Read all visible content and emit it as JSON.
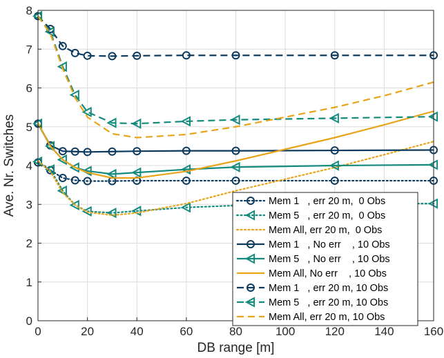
{
  "chart_data": {
    "type": "line",
    "xlabel": "DB range [m]",
    "ylabel": "Ave. Nr. Switches",
    "xlim": [
      0,
      160
    ],
    "ylim": [
      0,
      8
    ],
    "xticks": [
      0,
      20,
      40,
      60,
      80,
      100,
      120,
      140,
      160
    ],
    "yticks": [
      0,
      1,
      2,
      3,
      4,
      5,
      6,
      7,
      8
    ],
    "grid": true,
    "legend_position": "lower-right",
    "colors": {
      "navy": "#0b3a5e",
      "teal": "#138a7e",
      "gold": "#e8a317"
    },
    "series": [
      {
        "name": "Mem 1   , err 20 m,  0 Obs",
        "color": "navy",
        "line": "dotted",
        "marker": "circle",
        "x": [
          0,
          5,
          10,
          15,
          20,
          30,
          40,
          60,
          80,
          120,
          160
        ],
        "y": [
          4.08,
          3.88,
          3.68,
          3.62,
          3.6,
          3.6,
          3.61,
          3.61,
          3.61,
          3.61,
          3.61
        ],
        "markers_x": [
          0,
          5,
          10,
          15,
          20,
          30,
          40,
          60,
          80,
          120,
          160
        ]
      },
      {
        "name": "Mem 5   , err 20 m,  0 Obs",
        "color": "teal",
        "line": "dotted",
        "marker": "triangle-left",
        "x": [
          0,
          5,
          10,
          15,
          20,
          30,
          40,
          60,
          80,
          120,
          160
        ],
        "y": [
          4.1,
          3.9,
          3.35,
          2.98,
          2.82,
          2.78,
          2.83,
          2.92,
          2.97,
          3.02,
          3.02
        ],
        "markers_x": [
          0,
          5,
          10,
          15,
          20,
          30,
          40,
          60,
          80,
          120,
          160
        ]
      },
      {
        "name": "Mem All, err 20 m,  0 Obs",
        "color": "gold",
        "line": "dotted",
        "marker": "none",
        "x": [
          0,
          5,
          10,
          15,
          20,
          30,
          40,
          60,
          80,
          100,
          120,
          140,
          160
        ],
        "y": [
          4.12,
          3.85,
          3.3,
          2.98,
          2.8,
          2.72,
          2.78,
          3.02,
          3.35,
          3.65,
          3.95,
          4.28,
          4.62
        ],
        "markers_x": []
      },
      {
        "name": "Mem 1   , No err    , 10 Obs",
        "color": "navy",
        "line": "solid",
        "marker": "circle",
        "x": [
          0,
          5,
          10,
          15,
          20,
          30,
          40,
          60,
          80,
          120,
          160
        ],
        "y": [
          5.08,
          4.52,
          4.37,
          4.36,
          4.35,
          4.36,
          4.37,
          4.38,
          4.38,
          4.39,
          4.4
        ],
        "markers_x": [
          0,
          5,
          10,
          15,
          20,
          30,
          40,
          60,
          80,
          120,
          160
        ]
      },
      {
        "name": "Mem 5   , No err    , 10 Obs",
        "color": "teal",
        "line": "solid",
        "marker": "triangle-left",
        "x": [
          0,
          5,
          10,
          15,
          20,
          30,
          40,
          60,
          80,
          120,
          160
        ],
        "y": [
          5.08,
          4.5,
          4.15,
          3.95,
          3.86,
          3.78,
          3.82,
          3.9,
          3.96,
          4.0,
          4.02
        ],
        "markers_x": [
          0,
          5,
          10,
          15,
          20,
          30,
          40,
          60,
          80,
          120,
          160
        ]
      },
      {
        "name": "Mem All, No err    , 10 Obs",
        "color": "gold",
        "line": "solid",
        "marker": "none",
        "x": [
          0,
          5,
          10,
          15,
          20,
          30,
          40,
          60,
          80,
          100,
          120,
          140,
          160
        ],
        "y": [
          5.1,
          4.5,
          4.15,
          3.95,
          3.82,
          3.68,
          3.68,
          3.85,
          4.12,
          4.42,
          4.72,
          5.05,
          5.4
        ],
        "markers_x": []
      },
      {
        "name": "Mem 1   , err 20 m, 10 Obs",
        "color": "navy",
        "line": "dashed",
        "marker": "circle",
        "x": [
          0,
          5,
          10,
          15,
          20,
          30,
          40,
          60,
          80,
          120,
          160
        ],
        "y": [
          7.85,
          7.52,
          7.08,
          6.9,
          6.83,
          6.82,
          6.83,
          6.84,
          6.84,
          6.84,
          6.84
        ],
        "markers_x": [
          0,
          5,
          10,
          15,
          20,
          30,
          40,
          60,
          80,
          120,
          160
        ]
      },
      {
        "name": "Mem 5   , err 20 m, 10 Obs",
        "color": "teal",
        "line": "dashed",
        "marker": "triangle-left",
        "x": [
          0,
          5,
          10,
          15,
          20,
          30,
          40,
          60,
          80,
          120,
          160
        ],
        "y": [
          7.85,
          7.45,
          6.55,
          5.82,
          5.38,
          5.1,
          5.08,
          5.14,
          5.18,
          5.22,
          5.26
        ],
        "markers_x": [
          0,
          5,
          10,
          15,
          20,
          30,
          40,
          60,
          80,
          120,
          160
        ]
      },
      {
        "name": "Mem All, err 20 m, 10 Obs",
        "color": "gold",
        "line": "dashed",
        "marker": "none",
        "x": [
          0,
          5,
          10,
          15,
          20,
          30,
          40,
          60,
          80,
          100,
          120,
          140,
          160
        ],
        "y": [
          7.85,
          7.4,
          6.5,
          5.75,
          5.25,
          4.82,
          4.72,
          4.8,
          5.0,
          5.25,
          5.5,
          5.8,
          6.15
        ],
        "markers_x": []
      }
    ]
  }
}
